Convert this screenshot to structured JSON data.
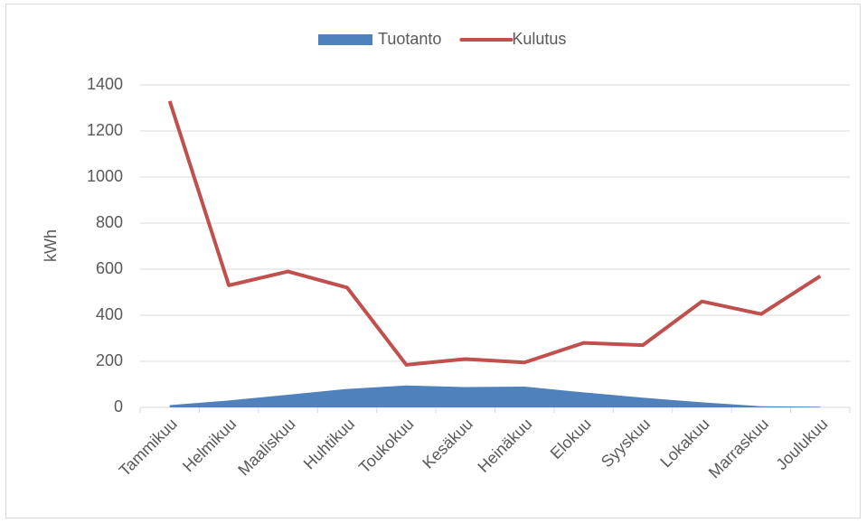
{
  "chart_data": {
    "type": "area_line",
    "categories": [
      "Tammikuu",
      "Helmikuu",
      "Maaliskuu",
      "Huhtikuu",
      "Toukokuu",
      "Kesäkuu",
      "Heinäkuu",
      "Elokuu",
      "Syyskuu",
      "Lokakuu",
      "Marraskuu",
      "Joulukuu"
    ],
    "series": [
      {
        "name": "Tuotanto",
        "type": "area",
        "color": "#4f81bd",
        "values": [
          10,
          30,
          55,
          80,
          95,
          88,
          90,
          65,
          42,
          22,
          5,
          3
        ]
      },
      {
        "name": "Kulutus",
        "type": "line",
        "color": "#c0504d",
        "values": [
          1330,
          530,
          590,
          520,
          185,
          210,
          195,
          280,
          270,
          460,
          405,
          570
        ]
      }
    ],
    "y_label": "kWh",
    "ylim": [
      0,
      1400
    ],
    "yticks": [
      0,
      200,
      400,
      600,
      800,
      1000,
      1200,
      1400
    ],
    "grid": true,
    "legend": "top"
  }
}
